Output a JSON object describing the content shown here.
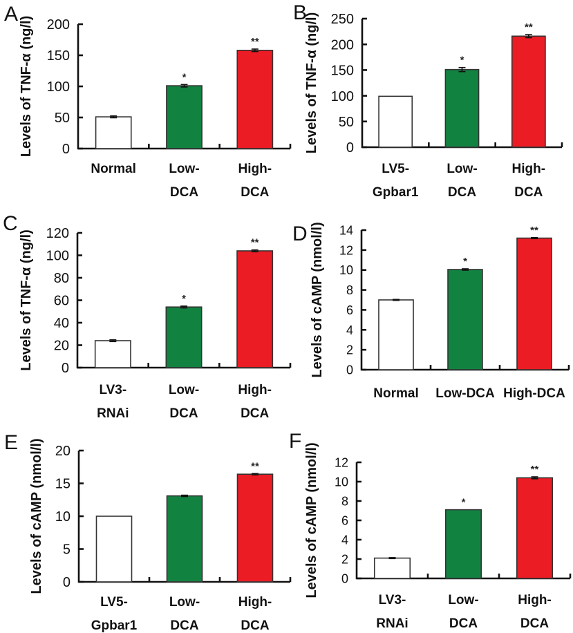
{
  "figure": {
    "colors": {
      "control": "#ffffff",
      "low_dca": "#128241",
      "high_dca": "#EC1C24"
    }
  },
  "chart_data": [
    {
      "panel": "A",
      "type": "bar",
      "ylabel": "Levels of TNF-α (ng/l)",
      "xlabel": "",
      "ylim": [
        0,
        200
      ],
      "yticks": [
        0,
        50,
        100,
        150,
        200
      ],
      "categories": [
        [
          "Normal"
        ],
        [
          "Low-",
          "DCA"
        ],
        [
          "High-",
          "DCA"
        ]
      ],
      "values": [
        51,
        101,
        158
      ],
      "errors": [
        1.5,
        2,
        2
      ],
      "significance": [
        "",
        "*",
        "**"
      ],
      "bar_colors": [
        "control",
        "low_dca",
        "high_dca"
      ]
    },
    {
      "panel": "B",
      "type": "bar",
      "ylabel": "Levels of TNF-α (ng/l)",
      "xlabel": "",
      "ylim": [
        0,
        250
      ],
      "yticks": [
        0,
        50,
        100,
        150,
        200,
        250
      ],
      "categories": [
        [
          "LV5-",
          "Gpbar1"
        ],
        [
          "Low-",
          "DCA"
        ],
        [
          "High-",
          "DCA"
        ]
      ],
      "values": [
        99,
        151,
        216
      ],
      "errors": [
        0,
        4,
        3
      ],
      "significance": [
        "",
        "*",
        "**"
      ],
      "bar_colors": [
        "control",
        "low_dca",
        "high_dca"
      ]
    },
    {
      "panel": "C",
      "type": "bar",
      "ylabel": "Levels of TNF-α (ng/l)",
      "xlabel": "",
      "ylim": [
        0,
        120
      ],
      "yticks": [
        0,
        20,
        40,
        60,
        80,
        100,
        120
      ],
      "categories": [
        [
          "LV3-",
          "RNAi"
        ],
        [
          "Low-",
          "DCA"
        ],
        [
          "High-",
          "DCA"
        ]
      ],
      "values": [
        24,
        54,
        104
      ],
      "errors": [
        0.8,
        0.8,
        0.8
      ],
      "significance": [
        "",
        "*",
        "**"
      ],
      "bar_colors": [
        "control",
        "low_dca",
        "high_dca"
      ]
    },
    {
      "panel": "D",
      "type": "bar",
      "ylabel": "Levels of cAMP (nmol/l)",
      "xlabel": "",
      "ylim": [
        0,
        14
      ],
      "yticks": [
        0,
        2,
        4,
        6,
        8,
        10,
        12,
        14
      ],
      "categories": [
        [
          "Normal"
        ],
        [
          "Low-DCA"
        ],
        [
          "High-DCA"
        ]
      ],
      "values": [
        7.0,
        10.05,
        13.2
      ],
      "errors": [
        0.05,
        0.07,
        0.05
      ],
      "significance": [
        "",
        "*",
        "**"
      ],
      "bar_colors": [
        "control",
        "low_dca",
        "high_dca"
      ]
    },
    {
      "panel": "E",
      "type": "bar",
      "ylabel": "Levels of cAMP (nmol/l)",
      "xlabel": "",
      "ylim": [
        0,
        20
      ],
      "yticks": [
        0,
        5,
        10,
        15,
        20
      ],
      "categories": [
        [
          "LV5-",
          "Gpbar1"
        ],
        [
          "Low-",
          "DCA"
        ],
        [
          "High-",
          "DCA"
        ]
      ],
      "values": [
        10.0,
        13.1,
        16.4
      ],
      "errors": [
        0,
        0.1,
        0.1
      ],
      "significance": [
        "",
        "",
        "**"
      ],
      "bar_colors": [
        "control",
        "low_dca",
        "high_dca"
      ]
    },
    {
      "panel": "F",
      "type": "bar",
      "ylabel": "Levels of cAMP (nmol/l)",
      "xlabel": "",
      "ylim": [
        0,
        12
      ],
      "yticks": [
        0,
        2,
        4,
        6,
        8,
        10,
        12
      ],
      "categories": [
        [
          "LV3-",
          "RNAi"
        ],
        [
          "Low-",
          "DCA"
        ],
        [
          "High-",
          "DCA"
        ]
      ],
      "values": [
        2.1,
        7.1,
        10.4
      ],
      "errors": [
        0.05,
        0,
        0.1
      ],
      "significance": [
        "",
        "*",
        "**"
      ],
      "bar_colors": [
        "control",
        "low_dca",
        "high_dca"
      ]
    }
  ]
}
